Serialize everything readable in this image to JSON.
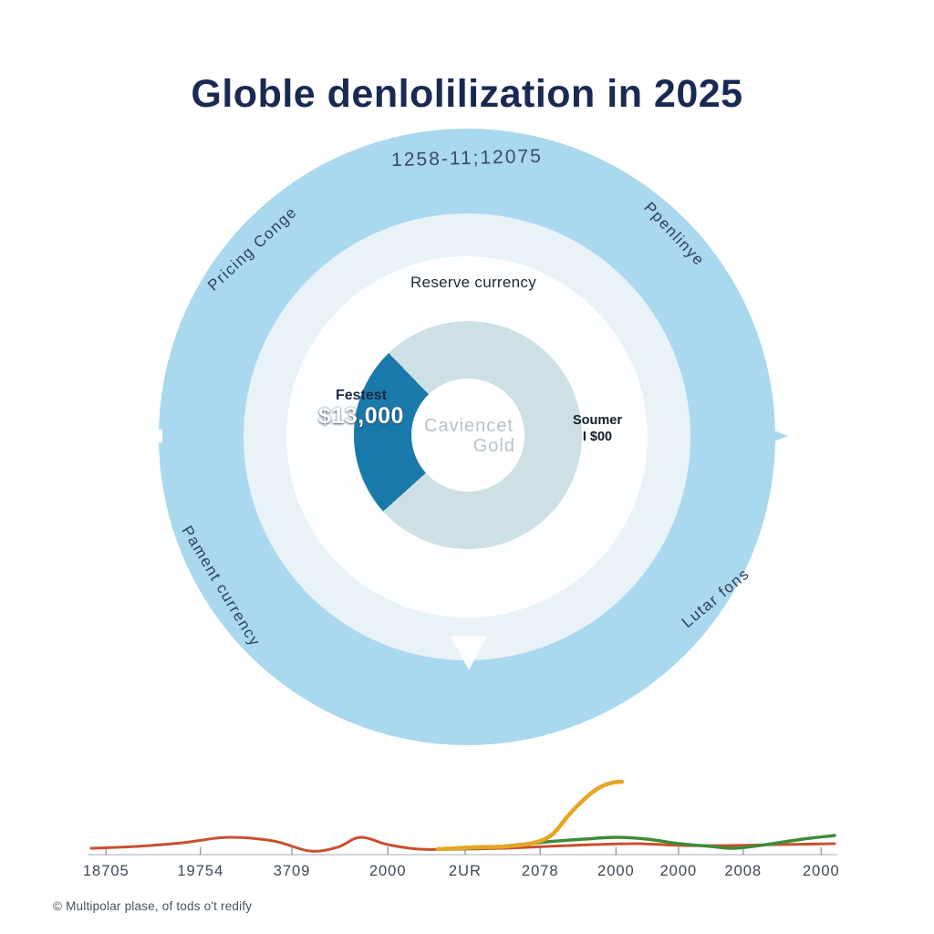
{
  "title": "Globle denlolilization in 2025",
  "footnote": "© Multipolar plase, of tods o't redify",
  "diagram": {
    "arc_top_label": "1258-11;12075",
    "ring_labels": {
      "upper_left": "Pricing Conge",
      "upper_right": "Ppenlinye",
      "lower_left": "Pament currency",
      "lower_right": "Lutar fons",
      "inner_top": "Reserve currency"
    },
    "callout_left": {
      "line1": "Festest",
      "line2": "$13,000"
    },
    "callout_right": {
      "line1": "Soumer",
      "line2": "I $00"
    },
    "center": {
      "line1": "Caviencet",
      "line2": "Gold"
    },
    "colors": {
      "outer_ring": "#a9d8ef",
      "mid_ring": "#e9f2f7",
      "inner_ring": "#fdfeff",
      "donut_base": "#cde0e5",
      "donut_wedge": "#1a79ab",
      "title_text": "#182a52"
    }
  },
  "chart_data": [
    {
      "type": "donut",
      "center_label": "Caviencet Gold",
      "start_deg": 228,
      "segments": [
        {
          "label": "Festest",
          "value_label": "$13,000",
          "color": "#1a79ab",
          "sweep_deg": 88
        },
        {
          "label": "",
          "value_label": "",
          "color": "#cde0e5",
          "sweep_deg": 272
        }
      ]
    },
    {
      "type": "line",
      "title": "",
      "xlabel": "",
      "ylabel": "",
      "grid": false,
      "legend": null,
      "ticks": [
        {
          "f": 0.02,
          "label": "18705"
        },
        {
          "f": 0.147,
          "label": "19754"
        },
        {
          "f": 0.27,
          "label": "3709"
        },
        {
          "f": 0.399,
          "label": "2000"
        },
        {
          "f": 0.503,
          "label": "2UR"
        },
        {
          "f": 0.604,
          "label": "2078"
        },
        {
          "f": 0.706,
          "label": "2000"
        },
        {
          "f": 0.79,
          "label": "2000"
        },
        {
          "f": 0.877,
          "label": "2008"
        },
        {
          "f": 0.982,
          "label": "2000"
        }
      ],
      "series": [
        {
          "name": "red-line",
          "color": "#c8502e",
          "points": [
            [
              0.0,
              7
            ],
            [
              0.061,
              9
            ],
            [
              0.123,
              13
            ],
            [
              0.184,
              19
            ],
            [
              0.245,
              15
            ],
            [
              0.294,
              4
            ],
            [
              0.331,
              8
            ],
            [
              0.362,
              19
            ],
            [
              0.399,
              11
            ],
            [
              0.442,
              6
            ],
            [
              0.491,
              6
            ],
            [
              0.552,
              7
            ],
            [
              0.613,
              9
            ],
            [
              0.675,
              11
            ],
            [
              0.736,
              12
            ],
            [
              0.798,
              10
            ],
            [
              0.859,
              10
            ],
            [
              0.92,
              11
            ],
            [
              1.0,
              12
            ]
          ]
        },
        {
          "name": "green-line",
          "color": "#3e8c38",
          "points": [
            [
              0.466,
              6
            ],
            [
              0.515,
              7
            ],
            [
              0.564,
              10
            ],
            [
              0.613,
              14
            ],
            [
              0.663,
              17
            ],
            [
              0.706,
              19
            ],
            [
              0.748,
              17
            ],
            [
              0.791,
              12
            ],
            [
              0.834,
              9
            ],
            [
              0.865,
              7
            ],
            [
              0.908,
              11
            ],
            [
              0.957,
              17
            ],
            [
              1.0,
              21
            ]
          ]
        },
        {
          "name": "amber-line",
          "color": "#e6a522",
          "points": [
            [
              0.466,
              6
            ],
            [
              0.515,
              8
            ],
            [
              0.558,
              9
            ],
            [
              0.595,
              13
            ],
            [
              0.62,
              22
            ],
            [
              0.644,
              45
            ],
            [
              0.669,
              65
            ],
            [
              0.687,
              75
            ],
            [
              0.702,
              79
            ],
            [
              0.714,
              80
            ]
          ]
        }
      ]
    }
  ]
}
